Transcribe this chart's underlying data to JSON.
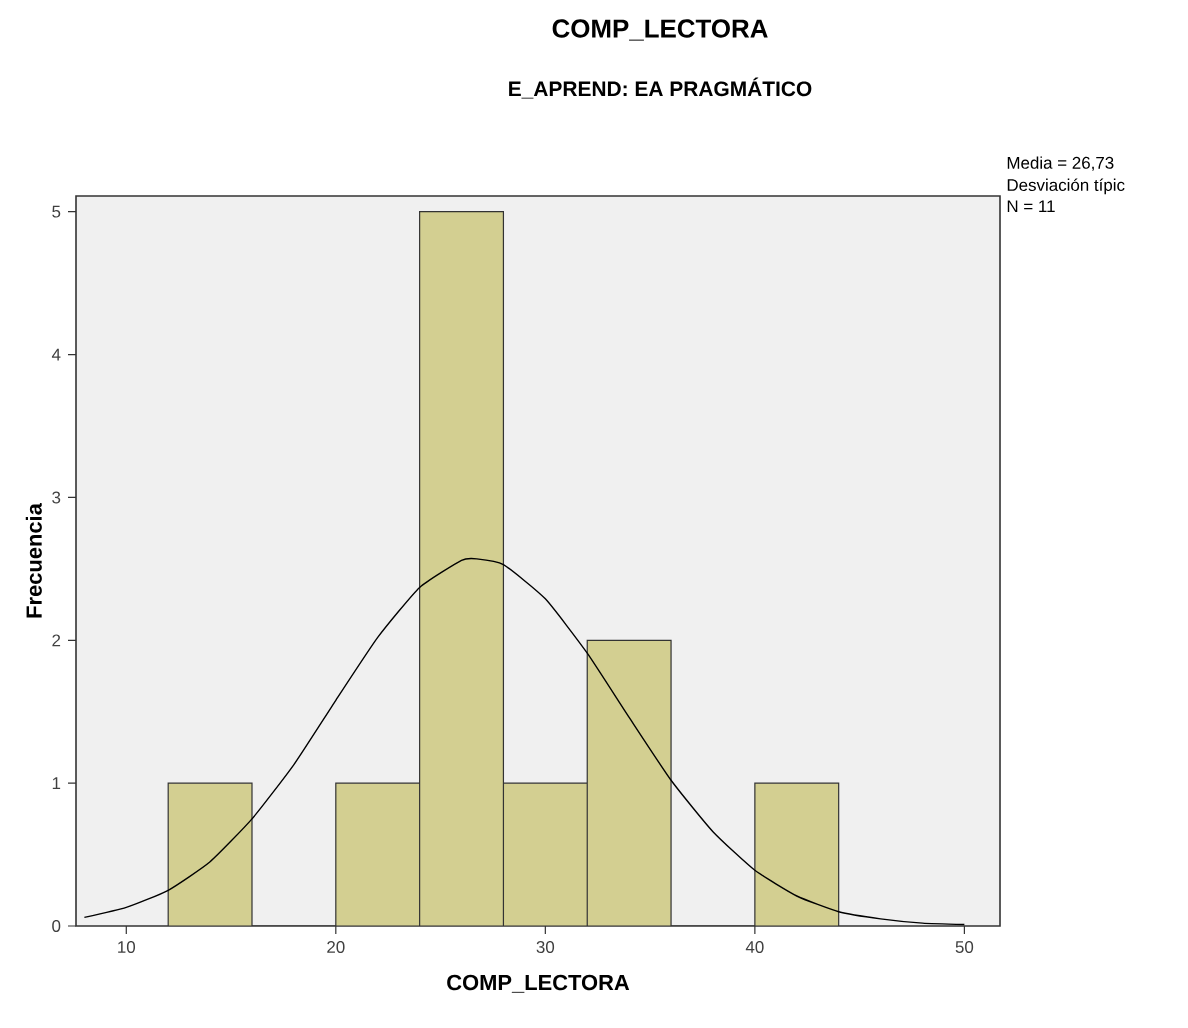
{
  "chart_data": {
    "type": "histogram",
    "title": "COMP_LECTORA",
    "subtitle": "E_APREND: EA PRAGMÁTICO",
    "xlabel": "COMP_LECTORA",
    "ylabel": "Frecuencia",
    "bins": [
      12,
      16,
      20,
      24,
      28,
      32,
      36,
      40,
      44
    ],
    "series": [
      {
        "color": "#d3cf91",
        "values": [
          1,
          0,
          1,
          5,
          1,
          2,
          0,
          1
        ]
      },
      {
        "type": "line",
        "color": "#000000",
        "x": [
          8,
          10,
          12,
          14,
          16,
          18,
          20,
          22,
          24,
          26,
          26.73,
          28,
          30,
          32,
          34,
          36,
          38,
          40,
          42,
          44,
          46,
          48,
          50
        ],
        "values": [
          0.06,
          0.13,
          0.25,
          0.45,
          0.75,
          1.13,
          1.58,
          2.02,
          2.37,
          2.56,
          2.57,
          2.53,
          2.29,
          1.91,
          1.46,
          1.02,
          0.66,
          0.39,
          0.21,
          0.1,
          0.05,
          0.02,
          0.01
        ]
      }
    ],
    "xlim": [
      7.6,
      51.7
    ],
    "ylim": [
      0,
      5.11
    ],
    "xticks": [
      10,
      20,
      30,
      40,
      50
    ],
    "yticks": [
      0,
      1,
      2,
      3,
      4,
      5
    ],
    "annotations": [
      "Media = 26,73",
      "Desviación típic",
      "N = 11"
    ]
  }
}
